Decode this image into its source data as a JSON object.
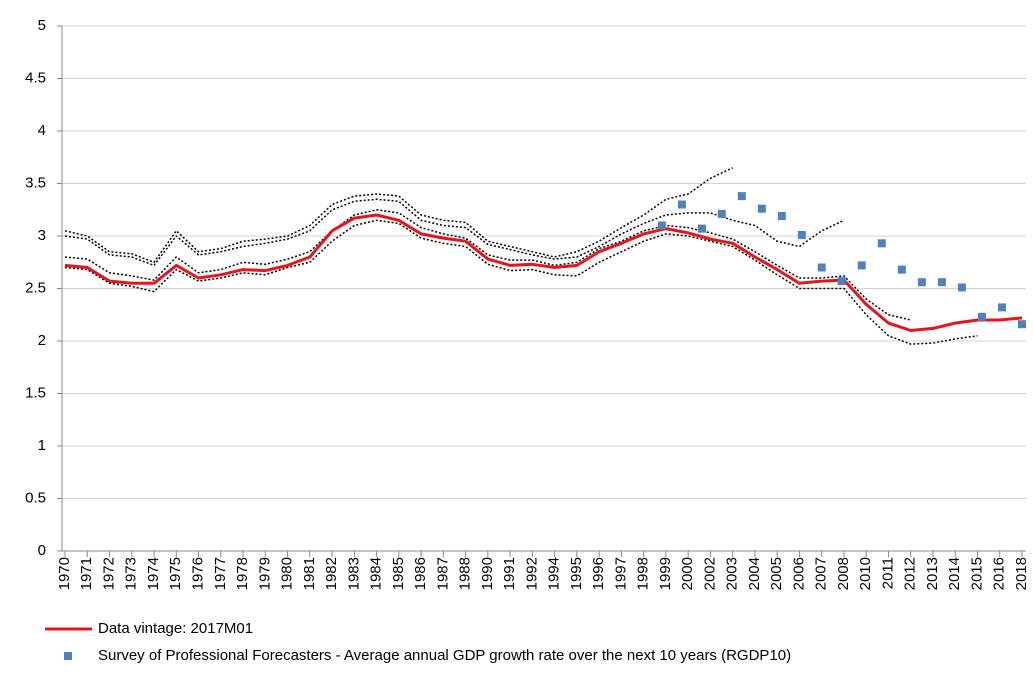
{
  "chart_data": {
    "type": "line",
    "categories": [
      "1970",
      "1971",
      "1972",
      "1973",
      "1974",
      "1975",
      "1976",
      "1977",
      "1978",
      "1979",
      "1980",
      "1981",
      "1982",
      "1983",
      "1984",
      "1985",
      "1986",
      "1987",
      "1988",
      "1990",
      "1991",
      "1992",
      "1994",
      "1995",
      "1996",
      "1997",
      "1998",
      "1999",
      "2000",
      "2002",
      "2003",
      "2004",
      "2005",
      "2006",
      "2007",
      "2008",
      "2010",
      "2011",
      "2012",
      "2013",
      "2014",
      "2015",
      "2016",
      "2018"
    ],
    "ylim": [
      0,
      5
    ],
    "yticks": [
      0,
      0.5,
      1,
      1.5,
      2,
      2.5,
      3,
      3.5,
      4,
      4.5,
      5
    ],
    "grid": true,
    "legend": "bottom",
    "series": [
      {
        "name": "Data vintage: 2017M01",
        "type": "line",
        "style": "solid",
        "color": "#e8141b",
        "values": [
          2.72,
          2.7,
          2.57,
          2.55,
          2.55,
          2.72,
          2.6,
          2.63,
          2.68,
          2.67,
          2.72,
          2.8,
          3.05,
          3.17,
          3.2,
          3.15,
          3.02,
          2.98,
          2.95,
          2.78,
          2.72,
          2.73,
          2.7,
          2.72,
          2.85,
          2.93,
          3.02,
          3.07,
          3.03,
          2.97,
          2.93,
          2.8,
          2.68,
          2.55,
          2.57,
          2.58,
          2.35,
          2.17,
          2.1,
          2.12,
          2.17,
          2.2,
          2.2,
          2.22
        ]
      },
      {
        "name": "Survey of Professional Forecasters - Average annual GDP growth rate over the next 10 years (RGDP10)",
        "type": "scatter",
        "color": "#4f81bd",
        "x": [
          26.82,
          27.72,
          28.62,
          29.51,
          30.41,
          31.31,
          32.21,
          33.11,
          34.0,
          34.9,
          35.8,
          36.7,
          37.6,
          38.5,
          39.4,
          40.3,
          41.2,
          42.1,
          43.0
        ],
        "values": [
          3.1,
          3.3,
          3.07,
          3.21,
          3.38,
          3.26,
          3.19,
          3.01,
          2.7,
          2.57,
          2.72,
          2.93,
          2.68,
          2.56,
          2.56,
          2.51,
          2.23,
          2.32,
          2.16
        ]
      },
      {
        "type": "line",
        "style": "dotted",
        "color": "#000000",
        "values": [
          3.05,
          3.0,
          2.85,
          2.83,
          2.75,
          3.05,
          2.85,
          2.88,
          2.95,
          2.97,
          3.0,
          3.1,
          3.3,
          3.38,
          3.4,
          3.38,
          3.2,
          3.15,
          3.13,
          2.95,
          2.9,
          2.85,
          2.8,
          2.85,
          2.95,
          3.08,
          3.2,
          3.35,
          3.4,
          3.55,
          3.65,
          null,
          null,
          null,
          null,
          null,
          null,
          null,
          null,
          null,
          null,
          null,
          null,
          null
        ]
      },
      {
        "type": "line",
        "style": "dotted",
        "color": "#000000",
        "values": [
          3.0,
          2.97,
          2.82,
          2.8,
          2.72,
          3.0,
          2.82,
          2.85,
          2.9,
          2.93,
          2.97,
          3.05,
          3.25,
          3.33,
          3.35,
          3.33,
          3.15,
          3.1,
          3.08,
          2.92,
          2.87,
          2.82,
          2.78,
          2.8,
          2.9,
          3.02,
          3.12,
          3.2,
          3.22,
          3.22,
          3.15,
          3.1,
          2.95,
          2.9,
          3.05,
          3.15,
          null,
          null,
          null,
          null,
          null,
          null,
          null,
          null
        ]
      },
      {
        "type": "line",
        "style": "dotted",
        "color": "#000000",
        "values": [
          2.8,
          2.78,
          2.65,
          2.62,
          2.58,
          2.8,
          2.65,
          2.68,
          2.75,
          2.73,
          2.78,
          2.85,
          3.05,
          3.2,
          3.25,
          3.22,
          3.08,
          3.02,
          2.98,
          2.82,
          2.77,
          2.77,
          2.72,
          2.75,
          2.88,
          2.95,
          3.05,
          3.1,
          3.08,
          3.03,
          2.97,
          2.85,
          2.72,
          2.6,
          2.6,
          2.62,
          2.4,
          2.25,
          2.2,
          null,
          null,
          null,
          null,
          null
        ]
      },
      {
        "type": "line",
        "style": "dotted",
        "color": "#000000",
        "values": [
          2.7,
          2.68,
          2.55,
          2.52,
          2.47,
          2.68,
          2.57,
          2.6,
          2.65,
          2.63,
          2.7,
          2.75,
          2.95,
          3.1,
          3.15,
          3.12,
          2.98,
          2.93,
          2.9,
          2.73,
          2.67,
          2.68,
          2.63,
          2.62,
          2.75,
          2.85,
          2.95,
          3.02,
          3.0,
          2.95,
          2.9,
          2.77,
          2.63,
          2.5,
          2.5,
          2.5,
          2.25,
          2.05,
          1.97,
          1.98,
          2.02,
          2.05,
          null,
          null
        ]
      }
    ]
  }
}
